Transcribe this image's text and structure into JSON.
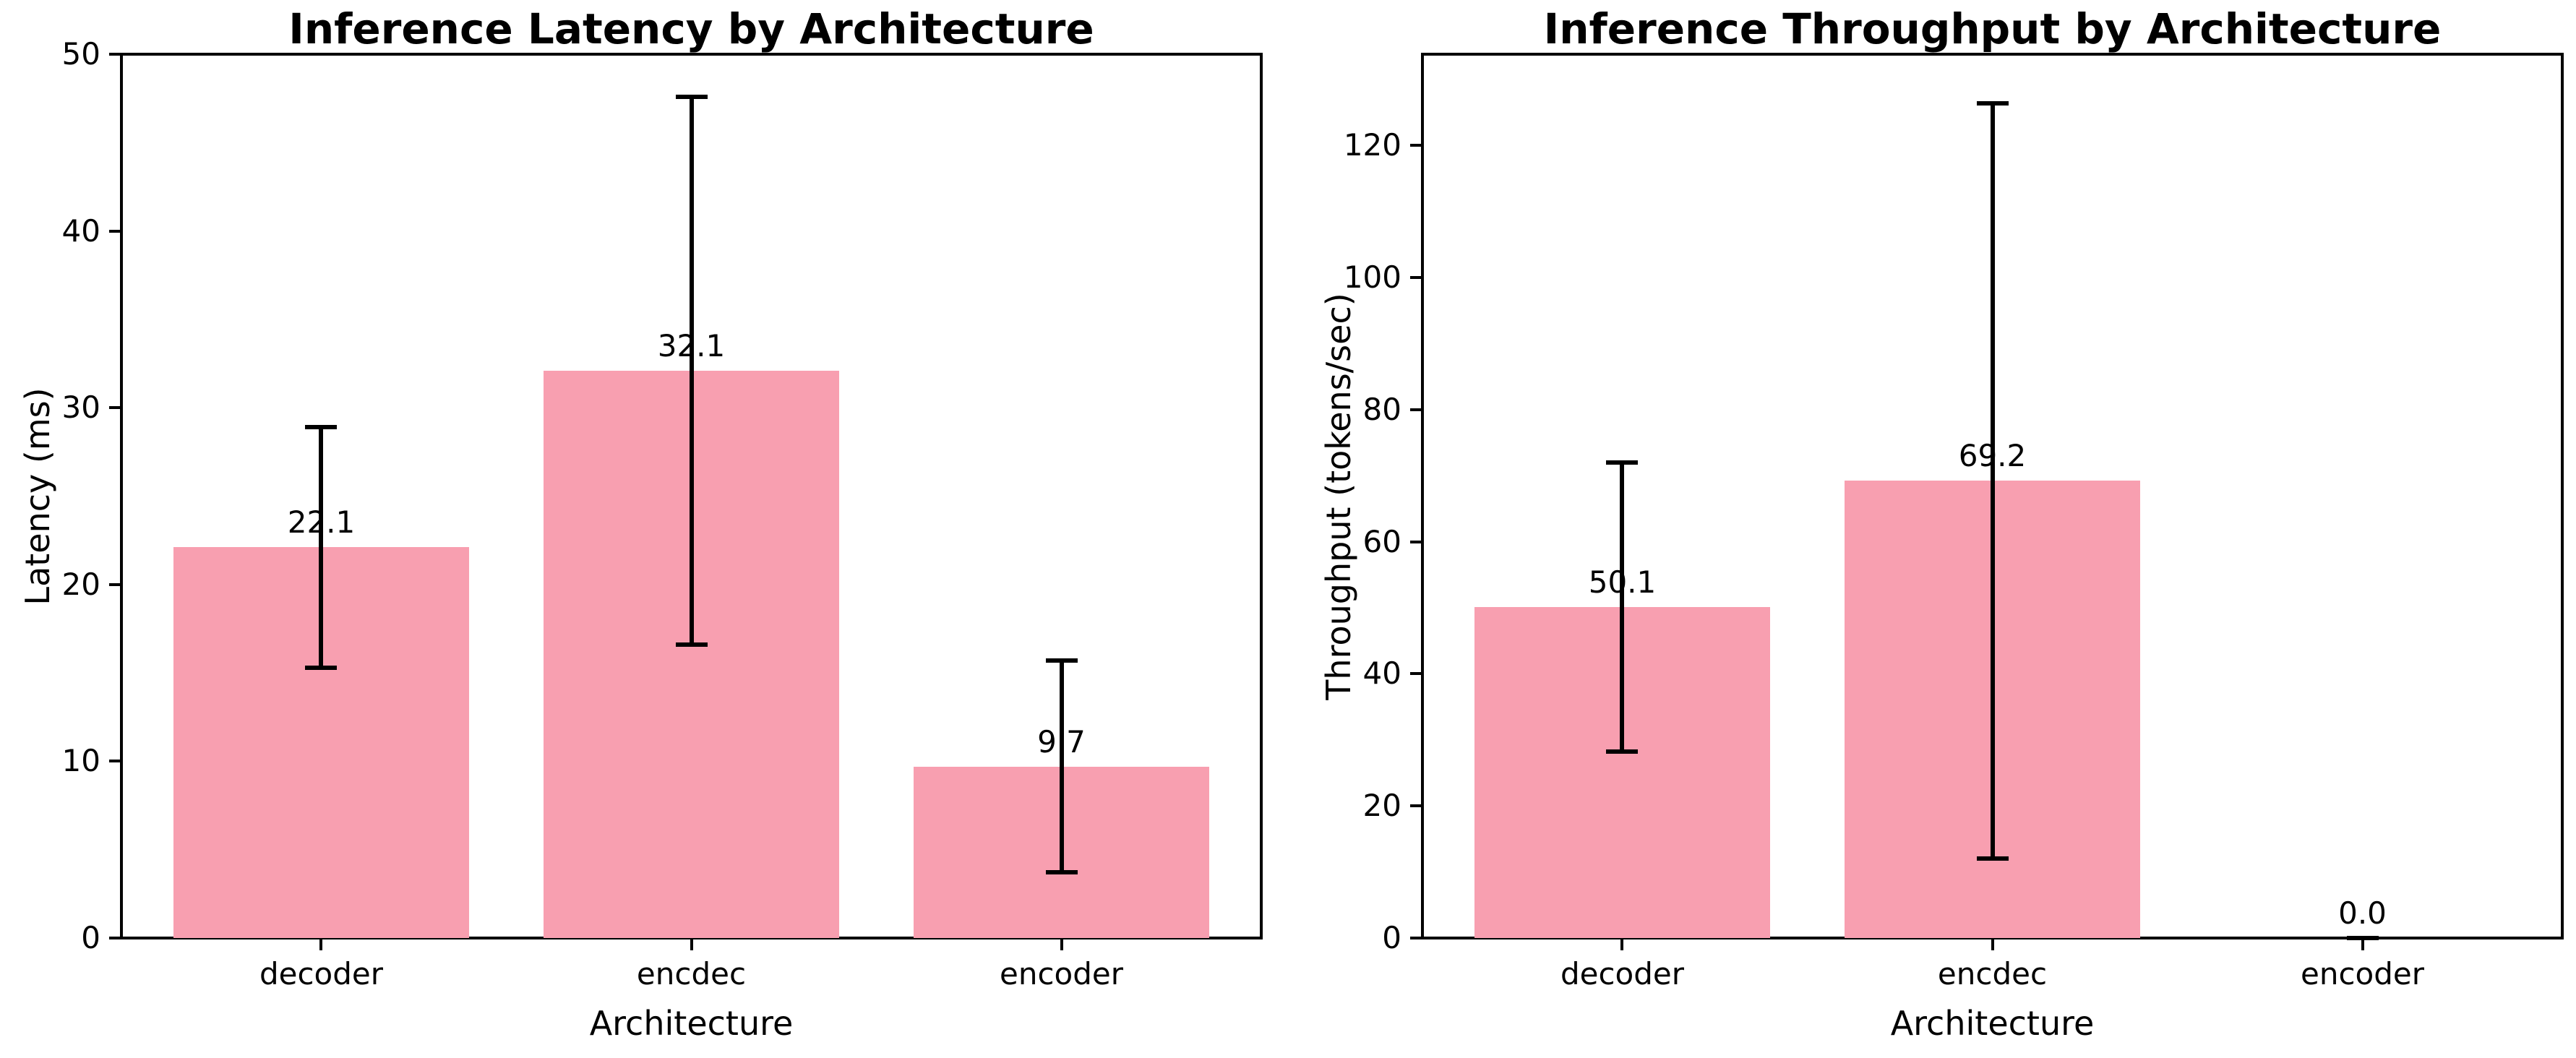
{
  "page": {
    "background": "#ffffff",
    "text_color": "#000000"
  },
  "chart_data": [
    {
      "type": "bar",
      "title": "Inference Latency by Architecture",
      "xlabel": "Architecture",
      "ylabel": "Latency (ms)",
      "categories": [
        "decoder",
        "encdec",
        "encoder"
      ],
      "values": [
        22.1,
        32.1,
        9.7
      ],
      "bar_labels": [
        "22.1",
        "32.1",
        "9.7"
      ],
      "error_low": [
        15.3,
        16.6,
        3.7
      ],
      "error_high": [
        28.9,
        47.6,
        15.7
      ],
      "yticks": [
        0,
        10,
        20,
        30,
        40,
        50
      ],
      "ylim": [
        0,
        50
      ],
      "grid": false,
      "legend": "none",
      "bar_color": "#f89fb0",
      "error_color": "#000000"
    },
    {
      "type": "bar",
      "title": "Inference Throughput by Architecture",
      "xlabel": "Architecture",
      "ylabel": "Throughput (tokens/sec)",
      "categories": [
        "decoder",
        "encdec",
        "encoder"
      ],
      "values": [
        50.1,
        69.2,
        0.0
      ],
      "bar_labels": [
        "50.1",
        "69.2",
        "0.0"
      ],
      "error_low": [
        28.2,
        12.0,
        0.0
      ],
      "error_high": [
        72.0,
        126.4,
        0.0
      ],
      "yticks": [
        0,
        20,
        40,
        60,
        80,
        100,
        120
      ],
      "ylim": [
        0,
        133.8
      ],
      "grid": false,
      "legend": "none",
      "bar_color": "#f89fb0",
      "error_color": "#000000"
    }
  ]
}
